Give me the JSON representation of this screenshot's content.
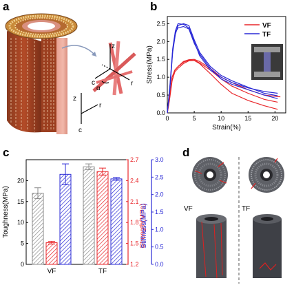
{
  "panels": {
    "a": {
      "letter": "a",
      "axes": {
        "z": "z",
        "c": "c",
        "r": "r",
        "alpha": "α",
        "z2": "z",
        "c2": "c",
        "r2": "r"
      }
    },
    "b": {
      "letter": "b"
    },
    "c": {
      "letter": "c"
    },
    "d": {
      "letter": "d",
      "left_label": "VF",
      "right_label": "TF"
    }
  },
  "colors": {
    "vf": "#e8262a",
    "tf": "#2a2ad6",
    "gray": "#8a8a8a",
    "red_axis": "#e8262a",
    "blue_axis": "#2a2ad6"
  },
  "chart_data": [
    {
      "type": "line",
      "xlabel": "Strain(%)",
      "ylabel": "Stress(MPa)",
      "xlim": [
        0,
        22
      ],
      "ylim": [
        0,
        2.7
      ],
      "xticks": [
        0,
        5,
        10,
        15,
        20
      ],
      "yticks": [
        0.0,
        0.5,
        1.0,
        1.5,
        2.0,
        2.5
      ],
      "xtick_labels": [
        "0",
        "5",
        "10",
        "15",
        "20"
      ],
      "ytick_labels": [
        "0.0",
        "0.5",
        "1.0",
        "1.5",
        "2.0",
        "2.5"
      ],
      "legend": [
        {
          "name": "VF",
          "color": "#e8262a"
        },
        {
          "name": "TF",
          "color": "#2a2ad6"
        }
      ],
      "legend_position": "top-right",
      "series": [
        {
          "group": "VF",
          "color": "#e8262a",
          "x": [
            0,
            0.4,
            0.9,
            1.4,
            2,
            3,
            4,
            5,
            6,
            8,
            10,
            12,
            15,
            18,
            20.5
          ],
          "y": [
            0,
            0.4,
            1.0,
            1.2,
            1.3,
            1.42,
            1.48,
            1.48,
            1.4,
            1.2,
            0.95,
            0.75,
            0.55,
            0.38,
            0.3
          ]
        },
        {
          "group": "VF",
          "color": "#e8262a",
          "x": [
            0,
            0.4,
            0.9,
            1.4,
            2,
            3,
            4,
            5,
            6,
            8,
            10,
            12,
            15,
            18,
            20.5
          ],
          "y": [
            0,
            0.35,
            0.9,
            1.15,
            1.25,
            1.38,
            1.46,
            1.47,
            1.38,
            1.1,
            0.8,
            0.55,
            0.35,
            0.2,
            0.1
          ]
        },
        {
          "group": "VF",
          "color": "#e8262a",
          "x": [
            0,
            0.4,
            0.9,
            1.4,
            2,
            3,
            4,
            5,
            6,
            8,
            10,
            12,
            15,
            18,
            21
          ],
          "y": [
            0,
            0.4,
            1.0,
            1.2,
            1.3,
            1.44,
            1.49,
            1.5,
            1.44,
            1.25,
            1.0,
            0.85,
            0.65,
            0.5,
            0.45
          ]
        },
        {
          "group": "TF",
          "color": "#2a2ad6",
          "x": [
            0,
            0.5,
            1.0,
            1.5,
            2,
            3,
            4,
            5,
            6,
            8,
            10,
            12,
            15,
            18,
            20.5
          ],
          "y": [
            0,
            0.8,
            1.8,
            2.3,
            2.5,
            2.48,
            2.38,
            2.0,
            1.6,
            1.2,
            1.0,
            0.85,
            0.7,
            0.6,
            0.55
          ]
        },
        {
          "group": "TF",
          "color": "#2a2ad6",
          "x": [
            0,
            0.5,
            1.0,
            1.5,
            2,
            3,
            4,
            5,
            6,
            8,
            10,
            12,
            15,
            18,
            20.5
          ],
          "y": [
            0,
            0.7,
            1.7,
            2.2,
            2.45,
            2.5,
            2.45,
            2.05,
            1.7,
            1.3,
            1.05,
            0.9,
            0.72,
            0.55,
            0.48
          ]
        },
        {
          "group": "TF",
          "color": "#2a2ad6",
          "x": [
            0,
            0.5,
            1.0,
            1.5,
            2,
            3,
            4,
            5,
            6,
            8,
            10,
            12,
            15,
            18,
            20.5
          ],
          "y": [
            0,
            0.75,
            1.75,
            2.25,
            2.38,
            2.42,
            2.35,
            1.95,
            1.65,
            1.25,
            0.95,
            0.8,
            0.65,
            0.5,
            0.4
          ]
        }
      ]
    },
    {
      "type": "bar",
      "categories": [
        "VF",
        "TF"
      ],
      "axes": [
        {
          "label": "Toughness(MPa)",
          "ylim": [
            0,
            25
          ],
          "ticks": [
            0,
            5,
            10,
            15,
            20
          ],
          "tick_labels": [
            "0",
            "5",
            "10",
            "15",
            "20"
          ],
          "color": "#000000"
        },
        {
          "label": "Strength(MPa)",
          "ylim": [
            1.2,
            2.7
          ],
          "ticks": [
            1.2,
            1.5,
            1.8,
            2.1,
            2.4,
            2.7
          ],
          "tick_labels": [
            "1.2",
            "1.5",
            "1.8",
            "2.1",
            "2.4",
            "2.7"
          ],
          "color": "#e8262a"
        },
        {
          "label": "Stiffness(MPa)",
          "ylim": [
            0,
            3.0
          ],
          "ticks": [
            0.0,
            0.5,
            1.0,
            1.5,
            2.0,
            2.5,
            3.0
          ],
          "tick_labels": [
            "0.0",
            "0.5",
            "1.0",
            "1.5",
            "2.0",
            "2.5",
            "3.0"
          ],
          "color": "#2a2ad6"
        }
      ],
      "series": [
        {
          "name": "Toughness",
          "axis": 0,
          "color": "#8a8a8a",
          "values": [
            17.0,
            23.3
          ],
          "errors": [
            1.3,
            0.7
          ]
        },
        {
          "name": "Strength",
          "axis": 1,
          "color": "#e8262a",
          "values": [
            1.51,
            2.53
          ],
          "errors": [
            0.02,
            0.05
          ]
        },
        {
          "name": "Stiffness",
          "axis": 2,
          "color": "#2a2ad6",
          "values": [
            2.58,
            2.45
          ],
          "errors": [
            0.3,
            0.04
          ]
        }
      ]
    }
  ]
}
